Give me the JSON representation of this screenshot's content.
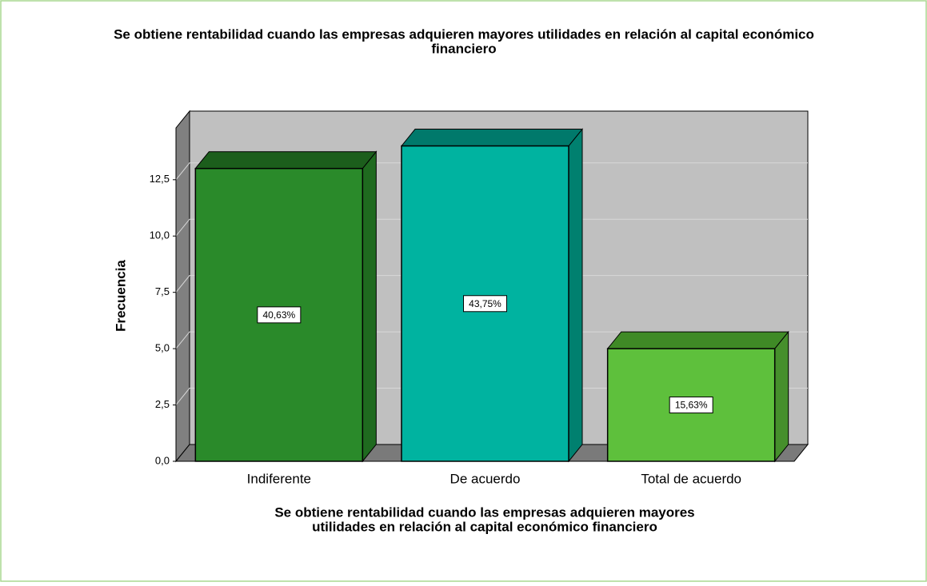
{
  "chart_data": {
    "type": "bar3d",
    "title": [
      "Se obtiene rentabilidad cuando las empresas adquieren mayores utilidades en relación al capital económico",
      "financiero"
    ],
    "x_label": [
      "Se obtiene rentabilidad cuando las empresas adquieren mayores",
      "utilidades en relación al capital económico financiero"
    ],
    "y_label": "Frecuencia",
    "categories": [
      "Indiferente",
      "De acuerdo",
      "Total de acuerdo"
    ],
    "values": [
      13,
      14,
      5
    ],
    "colors": [
      "#2a8a2a",
      "#00b3a0",
      "#5ec03c"
    ],
    "top_colors": [
      "#1c5e1c",
      "#00796b",
      "#3f8a26"
    ],
    "side_colors": [
      "#1f6a1f",
      "#00806f",
      "#468f2c"
    ],
    "percentages": [
      40.63,
      43.75,
      15.63
    ],
    "percentage_labels": [
      "40,63%",
      "43,75%",
      "15,63%"
    ],
    "ylim": [
      0,
      14.8
    ],
    "yticks": [
      {
        "value": 0,
        "label": "0,0"
      },
      {
        "value": 2.5,
        "label": "2,5"
      },
      {
        "value": 5,
        "label": "5,0"
      },
      {
        "value": 7.5,
        "label": "7,5"
      },
      {
        "value": 10,
        "label": "10,0"
      },
      {
        "value": 12.5,
        "label": "12,5"
      }
    ],
    "grid": true
  }
}
